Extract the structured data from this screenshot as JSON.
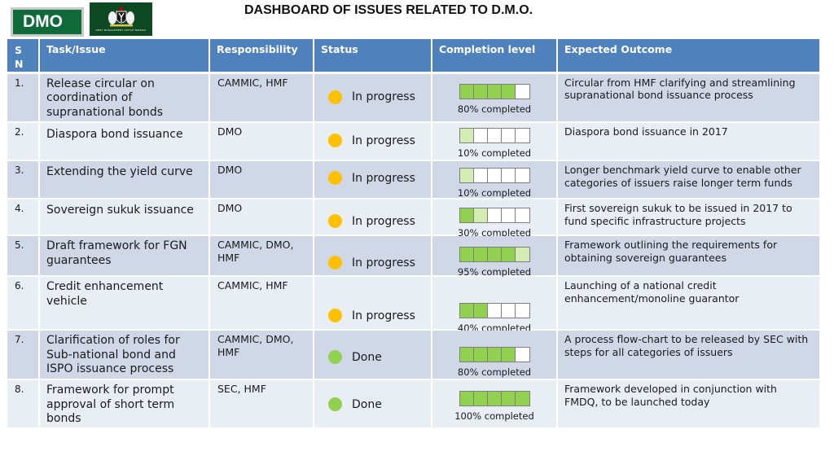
{
  "header": {
    "badge": "DMO",
    "logo_text": "DEBT MANAGEMENT OFFICE NIGERIA",
    "title": "DASHBOARD OF ISSUES RELATED TO D.M.O."
  },
  "columns": {
    "sn": "S N",
    "task": "Task/Issue",
    "responsibility": "Responsibility",
    "status": "Status",
    "completion": "Completion level",
    "outcome": "Expected Outcome"
  },
  "colors": {
    "header_bg": "#4f81bd",
    "row_odd": "#d0d8e8",
    "row_even": "#e9edf4",
    "in_progress": "#ffc000",
    "done": "#92d050",
    "filled": "#92d050",
    "partial": "#d3ecb4"
  },
  "rows": [
    {
      "sn": "1.",
      "task": "Release circular on coordination of supranational bonds",
      "responsibility": "CAMMIC, HMF",
      "status": "In progress",
      "status_color": "#ffc000",
      "completion_pct": 80,
      "completion_label": "80% completed",
      "outcome": "Circular from HMF clarifying and streamlining supranational bond issuance process"
    },
    {
      "sn": "2.",
      "task": "Diaspora bond issuance",
      "responsibility": "DMO",
      "status": "In progress",
      "status_color": "#ffc000",
      "completion_pct": 10,
      "completion_label": "10% completed",
      "outcome": "Diaspora bond issuance in 2017"
    },
    {
      "sn": "3.",
      "task": "Extending the yield curve",
      "responsibility": "DMO",
      "status": "In progress",
      "status_color": "#ffc000",
      "completion_pct": 10,
      "completion_label": "10% completed",
      "outcome": "Longer benchmark yield curve to enable other categories of issuers raise longer term funds"
    },
    {
      "sn": "4.",
      "task": "Sovereign sukuk issuance",
      "responsibility": "DMO",
      "status": "In progress",
      "status_color": "#ffc000",
      "completion_pct": 30,
      "completion_label": "30% completed",
      "outcome": "First sovereign sukuk to be issued in 2017 to fund specific infrastructure projects"
    },
    {
      "sn": "5.",
      "task": "Draft framework for FGN guarantees",
      "responsibility": "CAMMIC, DMO, HMF",
      "status": "In progress",
      "status_color": "#ffc000",
      "completion_pct": 95,
      "completion_label": "95% completed",
      "outcome": "Framework outlining the requirements for obtaining sovereign guarantees"
    },
    {
      "sn": "6.",
      "task": "Credit enhancement vehicle",
      "responsibility": "CAMMIC, HMF",
      "status": "In progress",
      "status_color": "#ffc000",
      "completion_pct": 40,
      "completion_label": "40% completed",
      "outcome": "Launching of a national credit enhancement/monoline guarantor"
    },
    {
      "sn": "7.",
      "task": "Clarification of roles for Sub-national bond and ISPO issuance process",
      "responsibility": "CAMMIC, DMO, HMF",
      "status": "Done",
      "status_color": "#92d050",
      "completion_pct": 80,
      "completion_label": "80% completed",
      "outcome": "A process flow-chart to be released by SEC with steps for all categories of issuers"
    },
    {
      "sn": "8.",
      "task": "Framework for prompt approval of short term bonds",
      "responsibility": "SEC, HMF",
      "status": "Done",
      "status_color": "#92d050",
      "completion_pct": 100,
      "completion_label": "100% completed",
      "outcome": "Framework developed in conjunction with FMDQ, to be launched today"
    }
  ]
}
